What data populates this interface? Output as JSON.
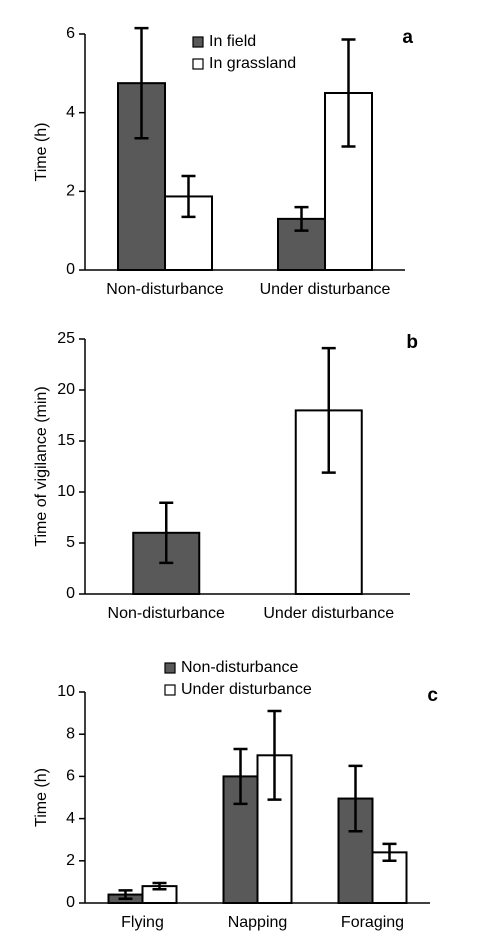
{
  "chart_data": [
    {
      "type": "bar",
      "panel_label": "a",
      "y_label": "Time (h)",
      "categories": [
        "Non-disturbance",
        "Under disturbance"
      ],
      "series": [
        {
          "name": "In field",
          "color": "#595959",
          "values": [
            4.75,
            1.3
          ],
          "errors": [
            1.4,
            0.3
          ]
        },
        {
          "name": "In grassland",
          "color": "#ffffff",
          "values": [
            1.87,
            4.5
          ],
          "errors": [
            0.52,
            1.36
          ]
        }
      ],
      "ylim": [
        0,
        6
      ],
      "yticks": [
        0,
        2,
        4,
        6
      ],
      "legend": "upper center"
    },
    {
      "type": "bar",
      "panel_label": "b",
      "y_label": "Time of vigilance (min)",
      "categories": [
        "Non-disturbance",
        "Under disturbance"
      ],
      "values": [
        6,
        18
      ],
      "errors": [
        2.95,
        6.1
      ],
      "colors": [
        "#595959",
        "#ffffff"
      ],
      "ylim": [
        0,
        25
      ],
      "yticks": [
        0,
        5,
        10,
        15,
        20,
        25
      ]
    },
    {
      "type": "bar",
      "panel_label": "c",
      "y_label": "Time (h)",
      "categories": [
        "Flying",
        "Napping",
        "Foraging"
      ],
      "series": [
        {
          "name": "Non-disturbance",
          "color": "#595959",
          "values": [
            0.4,
            6.0,
            4.95
          ],
          "errors": [
            0.2,
            1.3,
            1.55
          ]
        },
        {
          "name": "Under disturbance",
          "color": "#ffffff",
          "values": [
            0.8,
            7.0,
            2.4
          ],
          "errors": [
            0.15,
            2.1,
            0.4
          ]
        }
      ],
      "ylim": [
        0,
        10
      ],
      "yticks": [
        0,
        2,
        4,
        6,
        8,
        10
      ],
      "legend": "above"
    }
  ]
}
